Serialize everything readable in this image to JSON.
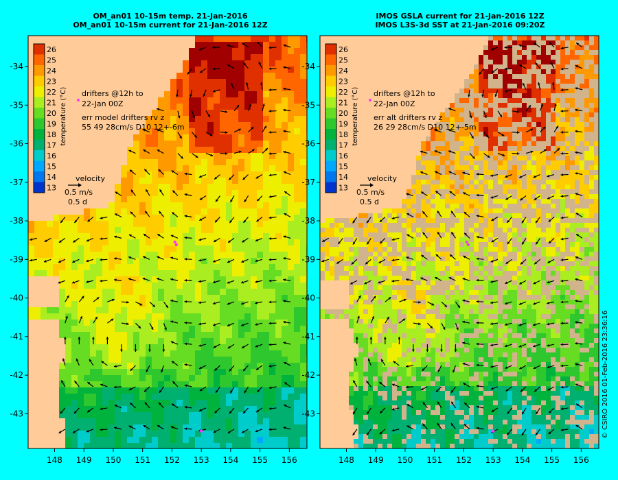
{
  "panels": [
    {
      "title_line1": "OM_an01 10-15m temp. 21-Jan-2016",
      "title_line2": "OM_an01 10-15m current for 21-Jan-2016 12Z",
      "legend_drifters_1": "drifters @12h to",
      "legend_drifters_2": "22-Jan 00Z",
      "legend_err_1": "err model drifters rv z",
      "legend_err_2": "55 49 28cm/s D10 12+-6m",
      "velocity_label": "velocity",
      "velocity_speed": "0.5 m/s",
      "velocity_duration": "0.5 d"
    },
    {
      "title_line1": "IMOS GSLA current for 21-Jan-2016 12Z",
      "title_line2": "IMOS L3S-3d SST at 21-Jan-2016 09:20Z",
      "legend_drifters_1": "drifters @12h to",
      "legend_drifters_2": "22-Jan 00Z",
      "legend_err_1": "err alt drifters rv z",
      "legend_err_2": "26 29 28cm/s D10 12+-5m",
      "velocity_label": "velocity",
      "velocity_speed": "0.5 m/s",
      "velocity_duration": "0.5 d"
    }
  ],
  "credit": "© CSIRO 2016   01-Feb-2016 23:36:16",
  "colors": {
    "background": "#00ffff",
    "land": "#ffcc99",
    "missing_data": "#d2b48c",
    "drifter": "#ff33ff",
    "arrow": "#000000"
  },
  "chart_data": {
    "type": "heatmap",
    "x_ticks": [
      148,
      149,
      150,
      151,
      152,
      153,
      154,
      155,
      156
    ],
    "y_ticks": [
      -34,
      -35,
      -36,
      -37,
      -38,
      -39,
      -40,
      -41,
      -42,
      -43
    ],
    "xlim": [
      147.1,
      156.6
    ],
    "ylim": [
      -43.9,
      -33.2
    ],
    "colorbar": {
      "label": "temperature (°C)",
      "ticks": [
        26,
        25,
        24,
        23,
        22,
        21,
        20,
        19,
        18,
        17,
        16,
        15,
        14,
        13
      ],
      "range": [
        12.5,
        26.5
      ]
    }
  }
}
